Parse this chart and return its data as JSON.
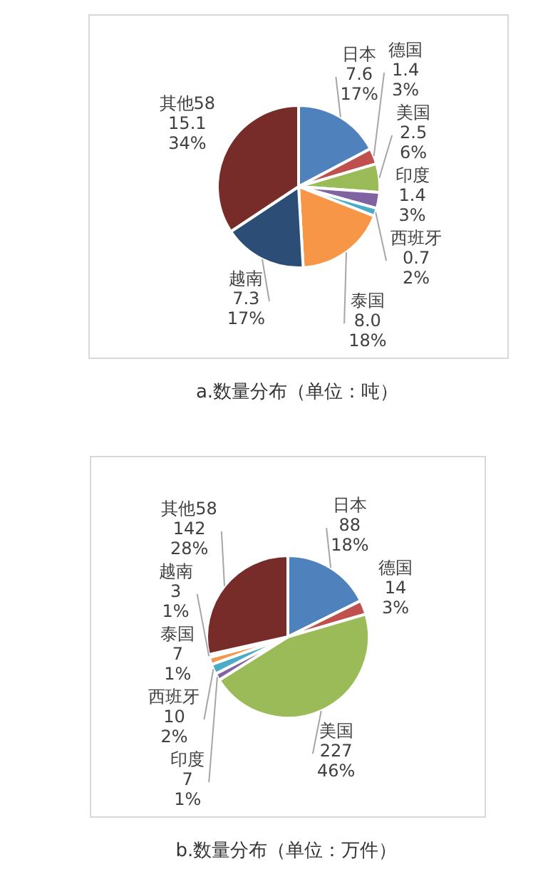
{
  "chart_data": [
    {
      "type": "pie",
      "title": "a.数量分布（单位：吨）",
      "categories": [
        "日本",
        "德国",
        "美国",
        "印度",
        "西班牙",
        "泰国",
        "越南",
        "其他58"
      ],
      "values": [
        7.6,
        1.4,
        2.5,
        1.4,
        0.7,
        8.0,
        7.3,
        15.1
      ],
      "value_labels": [
        "7.6\n17%",
        "1.4\n3%",
        "2.5\n6%",
        "1.4\n3%",
        "0.7\n2%",
        "8.0\n18%",
        "7.3\n17%",
        "15.1\n34%"
      ],
      "colors": [
        "#4f81bd",
        "#c0504d",
        "#9bbb59",
        "#8064a2",
        "#4bacc6",
        "#f79646",
        "#2c4d75",
        "#772c2a"
      ],
      "legend": false
    },
    {
      "type": "pie",
      "title": "b.数量分布（单位：万件）",
      "categories": [
        "日本",
        "德国",
        "美国",
        "印度",
        "西班牙",
        "泰国",
        "越南",
        "其他58"
      ],
      "values": [
        88,
        14,
        227,
        7,
        10,
        7,
        3,
        142
      ],
      "value_labels": [
        "88\n18%",
        "14\n3%",
        "227\n46%",
        "7\n1%",
        "10\n2%",
        "7\n1%",
        "3\n1%",
        "142\n28%"
      ],
      "colors": [
        "#4f81bd",
        "#c0504d",
        "#9bbb59",
        "#8064a2",
        "#4bacc6",
        "#f79646",
        "#2c4d75",
        "#772c2a"
      ],
      "legend": false
    }
  ]
}
